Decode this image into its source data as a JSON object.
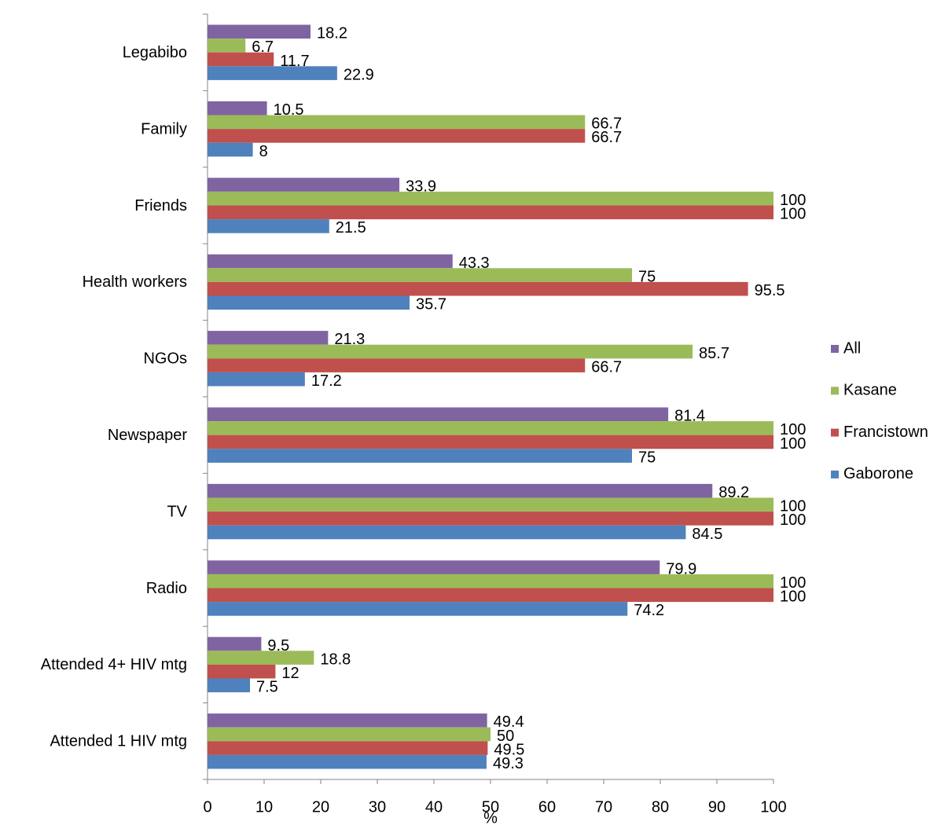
{
  "chart_data": {
    "type": "barh",
    "categories": [
      "Legabibo",
      "Family",
      "Friends",
      "Health workers",
      "NGOs",
      "Newspaper",
      "TV",
      "Radio",
      "Attended 4+ HIV mtg",
      "Attended 1 HIV mtg"
    ],
    "series": [
      {
        "name": "All",
        "color": "#8064a2",
        "values": [
          18.2,
          10.5,
          33.9,
          43.3,
          21.3,
          81.4,
          89.2,
          79.9,
          9.5,
          49.4
        ]
      },
      {
        "name": "Kasane",
        "color": "#9bbb59",
        "values": [
          6.7,
          66.7,
          100,
          75,
          85.7,
          100,
          100,
          100,
          18.8,
          50
        ]
      },
      {
        "name": "Francistown",
        "color": "#c0504d",
        "values": [
          11.7,
          66.7,
          100,
          95.5,
          66.7,
          100,
          100,
          100,
          12,
          49.5
        ]
      },
      {
        "name": "Gaborone",
        "color": "#4f81bd",
        "values": [
          22.9,
          8,
          21.5,
          35.7,
          17.2,
          75,
          84.5,
          74.2,
          7.5,
          49.3
        ]
      }
    ],
    "xlabel": "%",
    "xlim": [
      0,
      100
    ],
    "xticks": [
      0,
      10,
      20,
      30,
      40,
      50,
      60,
      70,
      80,
      90,
      100
    ],
    "legend": "right",
    "grid": false
  }
}
